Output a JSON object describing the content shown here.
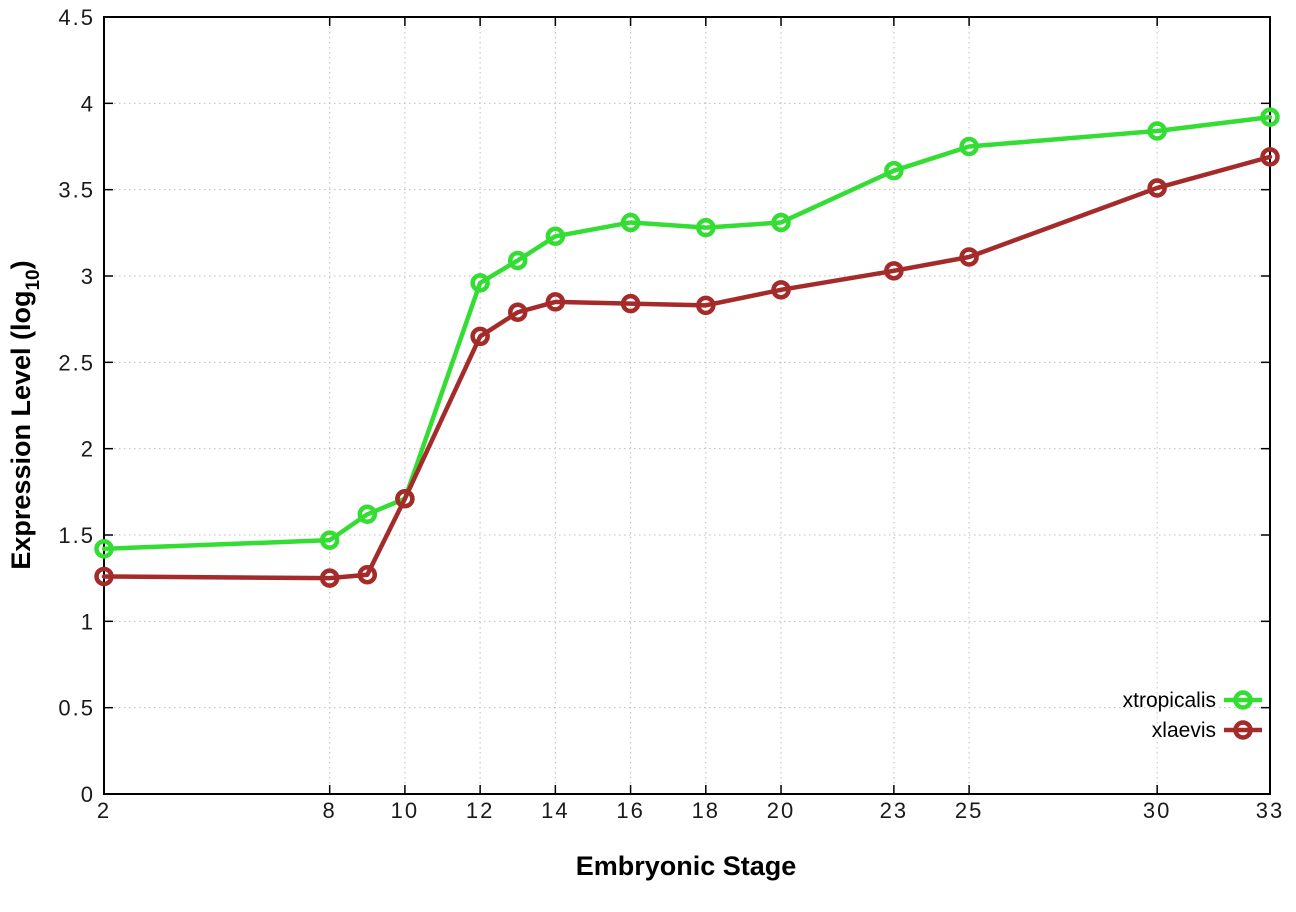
{
  "chart_data": {
    "type": "line",
    "title": "",
    "xlabel": "Embryonic Stage",
    "ylabel": "Expression Level (log10)",
    "ylabel_parts": {
      "prefix": "Expression Level (log",
      "sub": "10",
      "suffix": ")"
    },
    "xlim": [
      2,
      33
    ],
    "ylim": [
      0,
      4.5
    ],
    "x_ticks": [
      2,
      8,
      10,
      12,
      14,
      16,
      18,
      20,
      23,
      25,
      30,
      33
    ],
    "y_ticks": [
      0,
      0.5,
      1,
      1.5,
      2,
      2.5,
      3,
      3.5,
      4,
      4.5
    ],
    "grid": true,
    "legend_position": "bottom-right",
    "x": [
      2,
      8,
      9,
      10,
      12,
      13,
      14,
      16,
      18,
      20,
      23,
      25,
      30,
      33
    ],
    "series": [
      {
        "name": "xtropicalis",
        "color": "#33dd33",
        "values": [
          1.42,
          1.47,
          1.62,
          1.71,
          2.96,
          3.09,
          3.23,
          3.31,
          3.28,
          3.31,
          3.61,
          3.75,
          3.84,
          3.92
        ]
      },
      {
        "name": "xlaevis",
        "color": "#a52a2a",
        "values": [
          1.26,
          1.25,
          1.27,
          1.71,
          2.65,
          2.79,
          2.85,
          2.84,
          2.83,
          2.92,
          3.03,
          3.11,
          3.51,
          3.69
        ]
      }
    ],
    "colors": {
      "grid": "#bdbdbd",
      "axis": "#000000",
      "tick_label": "#1a1a1a",
      "background": "#ffffff"
    }
  }
}
